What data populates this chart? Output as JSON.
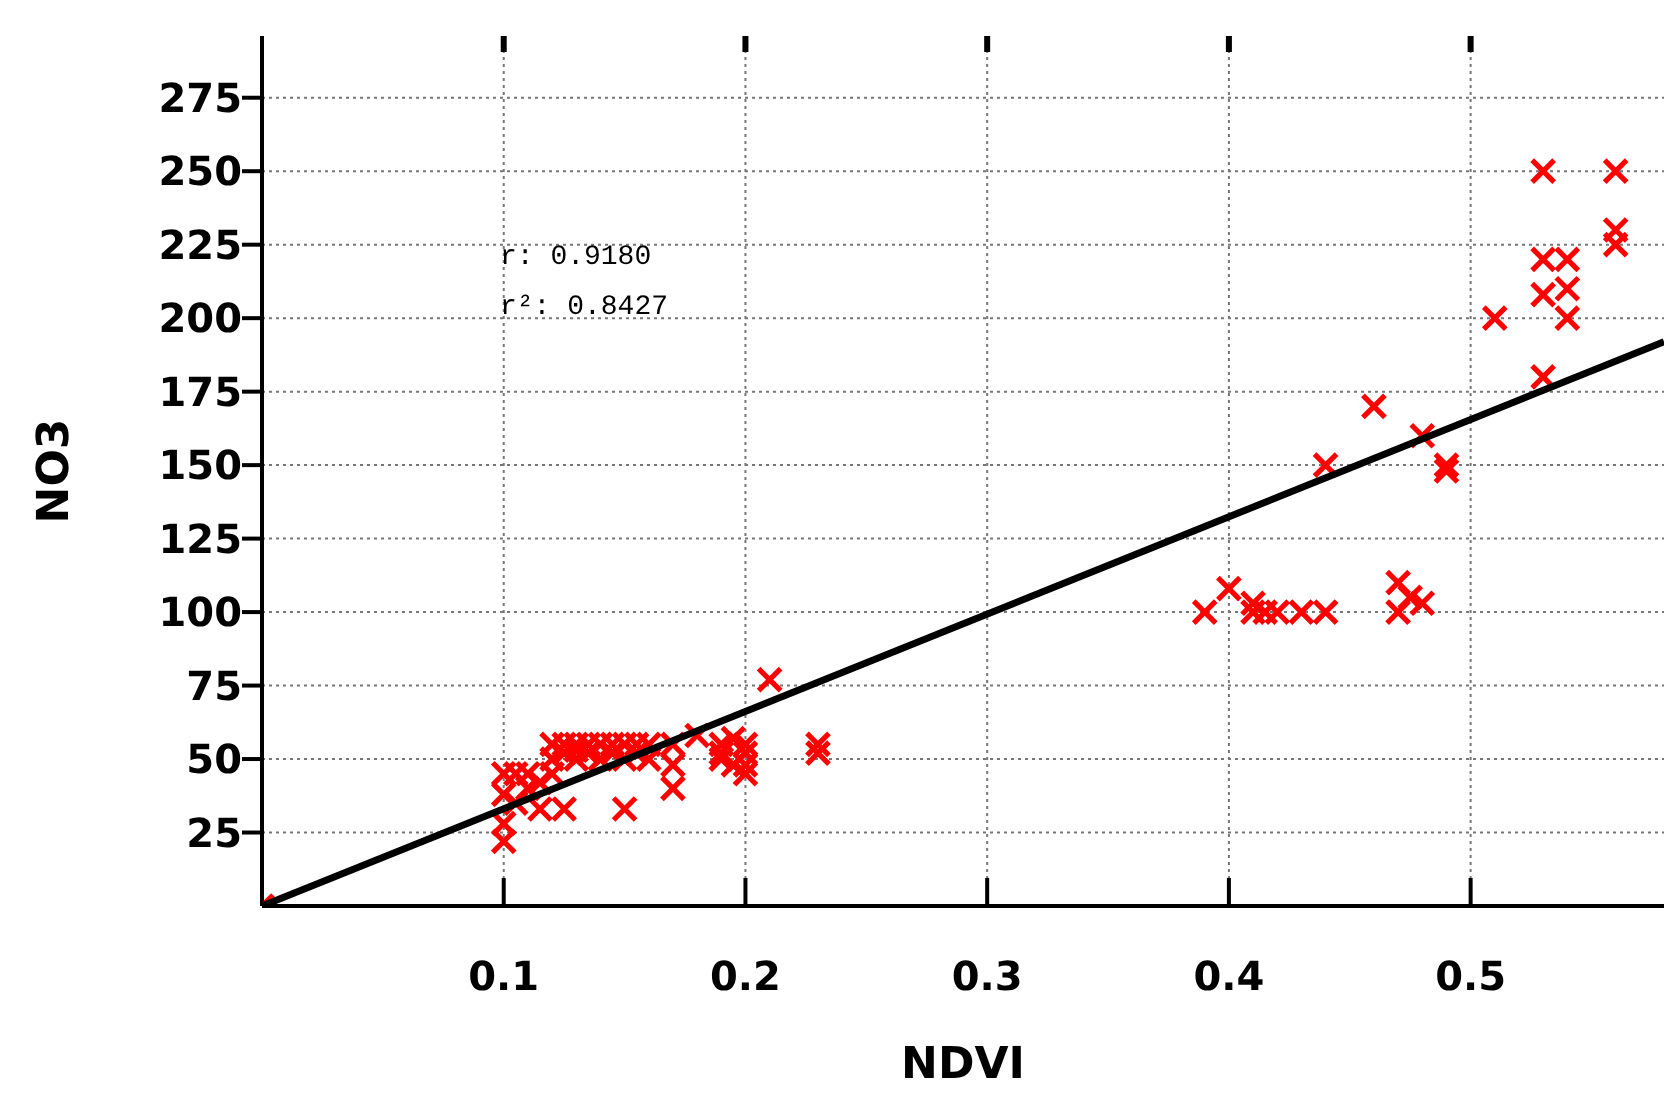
{
  "chart_data": {
    "type": "scatter",
    "xlabel": "NDVI",
    "ylabel": "NO3",
    "xlim": [
      0,
      0.58
    ],
    "ylim": [
      0,
      296
    ],
    "xticks": [
      0.1,
      0.2,
      0.3,
      0.4,
      0.5
    ],
    "yticks": [
      25,
      50,
      75,
      100,
      125,
      150,
      175,
      200,
      225,
      250,
      275
    ],
    "grid": true,
    "marker": "cross",
    "annotations": [
      "r:  0.9180",
      "r²:  0.8427"
    ],
    "series": [
      {
        "color": "#ff0000",
        "x": [
          0,
          0.1,
          0.1,
          0.1,
          0.1,
          0.105,
          0.105,
          0.11,
          0.11,
          0.115,
          0.115,
          0.12,
          0.12,
          0.12,
          0.125,
          0.125,
          0.125,
          0.13,
          0.13,
          0.13,
          0.135,
          0.135,
          0.14,
          0.14,
          0.145,
          0.145,
          0.15,
          0.15,
          0.15,
          0.155,
          0.155,
          0.16,
          0.16,
          0.17,
          0.17,
          0.17,
          0.18,
          0.19,
          0.19,
          0.19,
          0.195,
          0.195,
          0.2,
          0.2,
          0.2,
          0.2,
          0.21,
          0.23,
          0.23,
          0.39,
          0.4,
          0.41,
          0.41,
          0.415,
          0.42,
          0.43,
          0.44,
          0.44,
          0.46,
          0.47,
          0.47,
          0.475,
          0.48,
          0.48,
          0.49,
          0.49,
          0.51,
          0.53,
          0.53,
          0.53,
          0.53,
          0.54,
          0.54,
          0.54,
          0.56,
          0.56,
          0.56
        ],
        "values": [
          0,
          22,
          28,
          38,
          45,
          45,
          35,
          40,
          45,
          33,
          42,
          50,
          55,
          45,
          33,
          52,
          55,
          55,
          50,
          53,
          52,
          55,
          50,
          55,
          52,
          55,
          33,
          55,
          50,
          52,
          55,
          55,
          50,
          48,
          40,
          55,
          58,
          52,
          55,
          50,
          57,
          48,
          48,
          45,
          52,
          55,
          77,
          52,
          55,
          100,
          108,
          100,
          103,
          100,
          100,
          100,
          100,
          150,
          170,
          110,
          100,
          105,
          103,
          160,
          150,
          148,
          200,
          180,
          208,
          220,
          250,
          200,
          210,
          220,
          250,
          225,
          230
        ]
      },
      {
        "type": "line",
        "color": "#000000",
        "marker": "none",
        "x": [
          0,
          0.58
        ],
        "values": [
          0,
          192
        ]
      }
    ]
  }
}
